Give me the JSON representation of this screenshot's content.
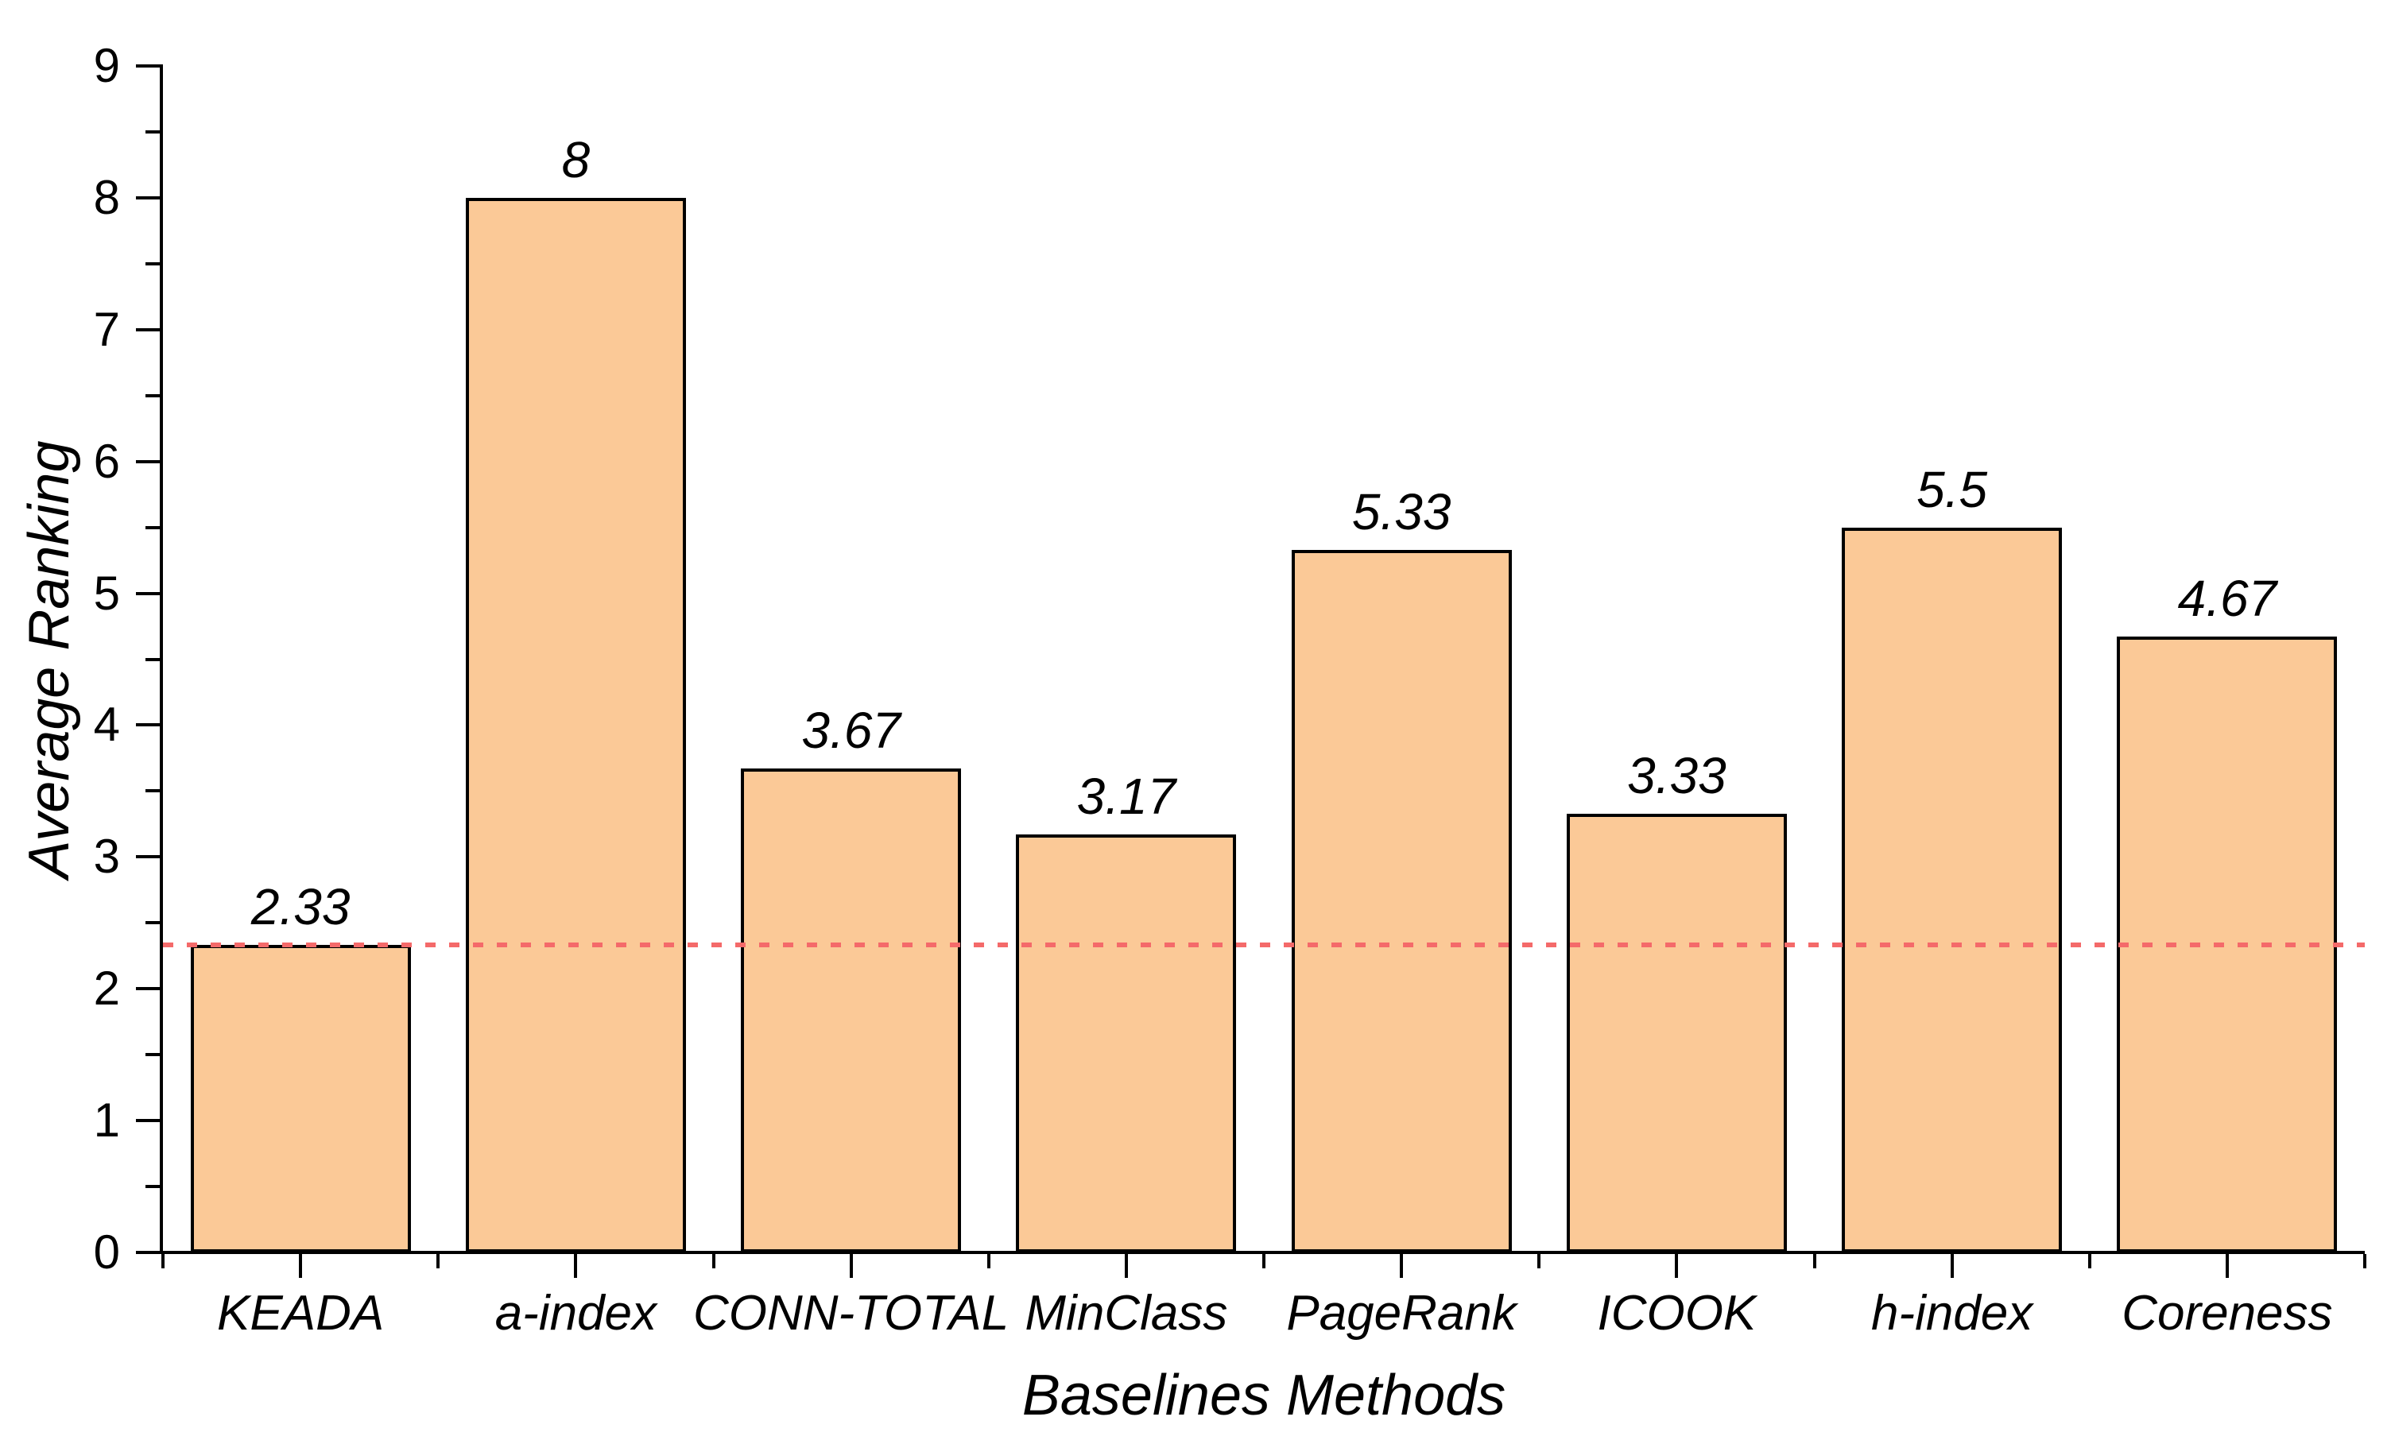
{
  "chart_data": {
    "type": "bar",
    "title": "",
    "categories": [
      "KEADA",
      "a-index",
      "CONN-TOTAL",
      "MinClass",
      "PageRank",
      "ICOOK",
      "h-index",
      "Coreness"
    ],
    "values": [
      2.33,
      8,
      3.67,
      3.17,
      5.33,
      3.33,
      5.5,
      4.67
    ],
    "value_labels": [
      "2.33",
      "8",
      "3.67",
      "3.17",
      "5.33",
      "3.33",
      "5.5",
      "4.67"
    ],
    "xlabel": "Baselines Methods",
    "ylabel": "Average Ranking",
    "ylim": [
      0,
      9
    ],
    "y_tick_labels": [
      "0",
      "1",
      "2",
      "3",
      "4",
      "5",
      "6",
      "7",
      "8",
      "9"
    ],
    "y_major_step": 1,
    "y_minor_step": 0.5,
    "grid": false,
    "legend": null,
    "reference_line": {
      "value": 2.33,
      "style": "dotted",
      "color": "#f46a6a"
    },
    "colors": {
      "bar_fill": "#fbc997",
      "bar_border": "#000000",
      "axis": "#000000",
      "text": "#000000",
      "reference": "#f46a6a"
    }
  }
}
